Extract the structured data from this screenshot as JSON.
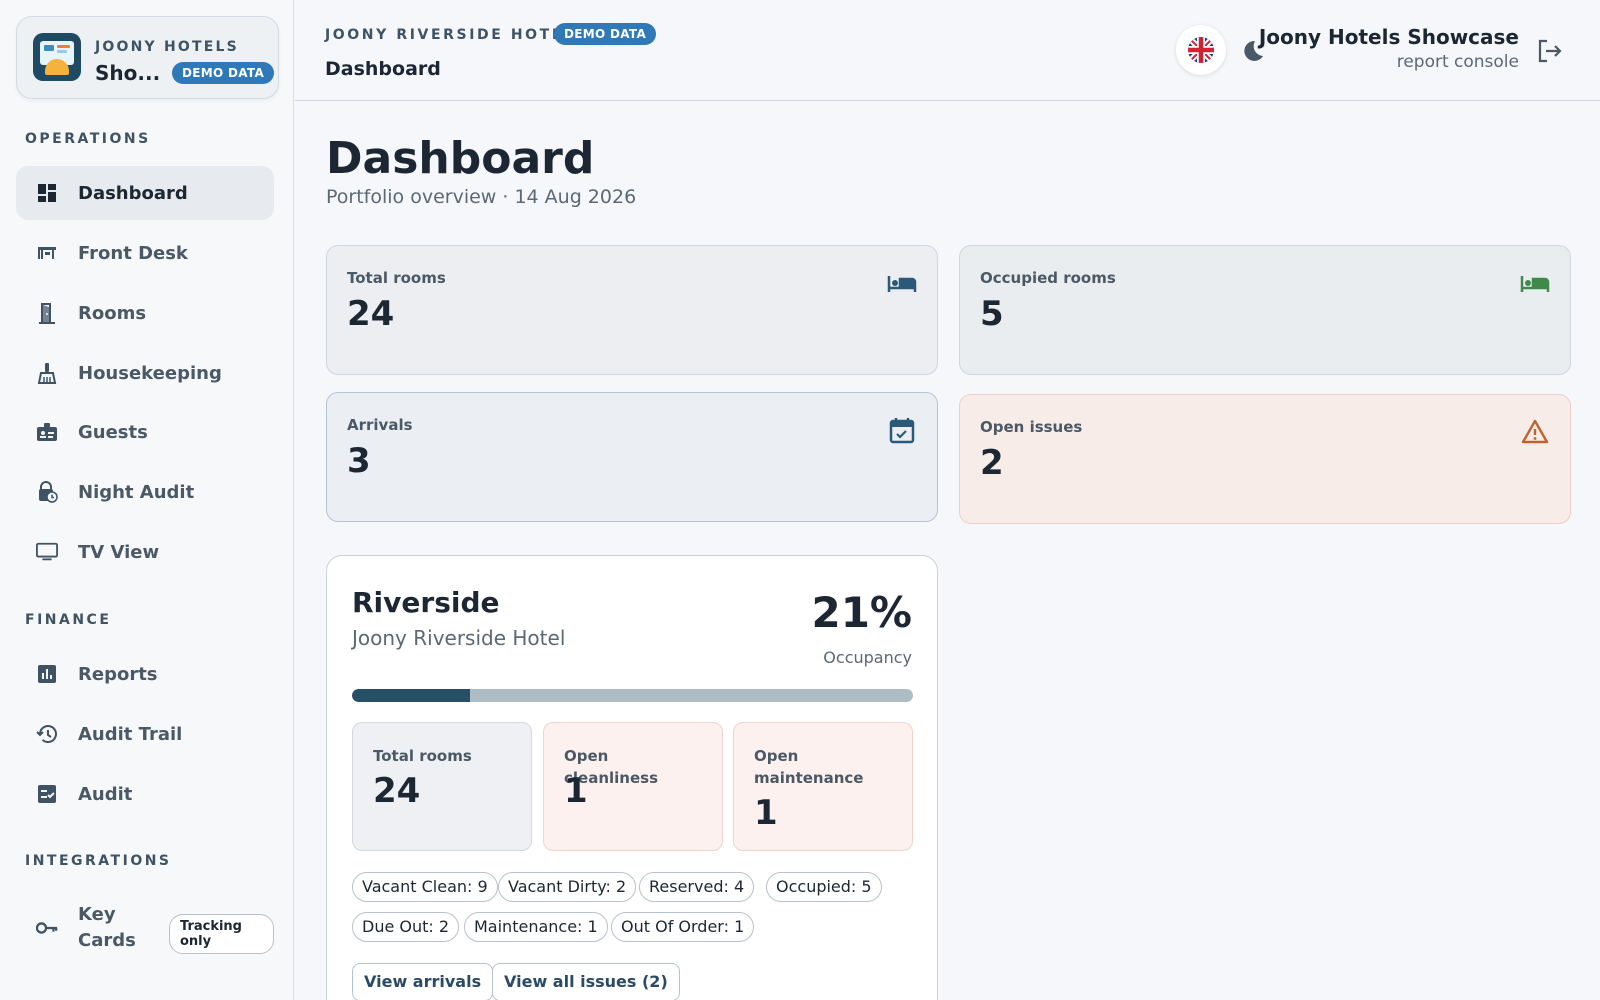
{
  "brand": {
    "overline": "JOONY HOTELS",
    "name": "Sho...",
    "demo_badge": "DEMO DATA"
  },
  "sidebar": {
    "sections": [
      {
        "label": "OPERATIONS",
        "items": [
          {
            "label": "Dashboard",
            "icon": "dashboard-icon",
            "active": true
          },
          {
            "label": "Front Desk",
            "icon": "front-desk-icon"
          },
          {
            "label": "Rooms",
            "icon": "door-icon"
          },
          {
            "label": "Housekeeping",
            "icon": "broom-icon"
          },
          {
            "label": "Guests",
            "icon": "badge-icon"
          },
          {
            "label": "Night Audit",
            "icon": "lock-clock-icon"
          },
          {
            "label": "TV View",
            "icon": "monitor-icon"
          }
        ]
      },
      {
        "label": "FINANCE",
        "items": [
          {
            "label": "Reports",
            "icon": "chart-icon"
          },
          {
            "label": "Audit Trail",
            "icon": "history-icon"
          },
          {
            "label": "Audit",
            "icon": "checklist-icon"
          }
        ]
      },
      {
        "label": "INTEGRATIONS",
        "items": [
          {
            "label": "Key Cards",
            "icon": "key-icon",
            "badge": "Tracking only"
          }
        ]
      }
    ]
  },
  "header": {
    "hotel": "JOONY RIVERSIDE HOTEL",
    "demo_badge": "DEMO DATA",
    "breadcrumb": "Dashboard",
    "user_name": "Joony Hotels Showcase",
    "user_role": "report console",
    "language_icon": "uk-flag-icon",
    "theme_icon": "moon-icon",
    "logout_icon": "logout-icon"
  },
  "page": {
    "title": "Dashboard",
    "subtitle": "Portfolio overview · 14 Aug 2026"
  },
  "stats": [
    {
      "label": "Total rooms",
      "value": "24",
      "icon": "bed-icon",
      "color": "#2b5a78"
    },
    {
      "label": "Occupied rooms",
      "value": "5",
      "icon": "bed-icon",
      "color": "#3f8a4a"
    },
    {
      "label": "Arrivals",
      "value": "3",
      "icon": "calendar-check-icon",
      "color": "#2b5a78"
    },
    {
      "label": "Open issues",
      "value": "2",
      "icon": "warning-icon",
      "color": "#c0622e"
    }
  ],
  "hotel_card": {
    "name": "Riverside",
    "full_name": "Joony Riverside Hotel",
    "occupancy": "21%",
    "occupancy_fraction": 0.21,
    "occupancy_label": "Occupancy",
    "minis": [
      {
        "label": "Total rooms",
        "value": "24"
      },
      {
        "label": "Open cleanliness",
        "value": "1"
      },
      {
        "label": "Open maintenance",
        "value": "1"
      }
    ],
    "chips": [
      "Vacant Clean: 9",
      "Vacant Dirty: 2",
      "Reserved: 4",
      "Occupied: 5",
      "Due Out: 2",
      "Maintenance: 1",
      "Out Of Order: 1"
    ],
    "buttons": [
      "View arrivals",
      "View all issues (2)"
    ]
  }
}
